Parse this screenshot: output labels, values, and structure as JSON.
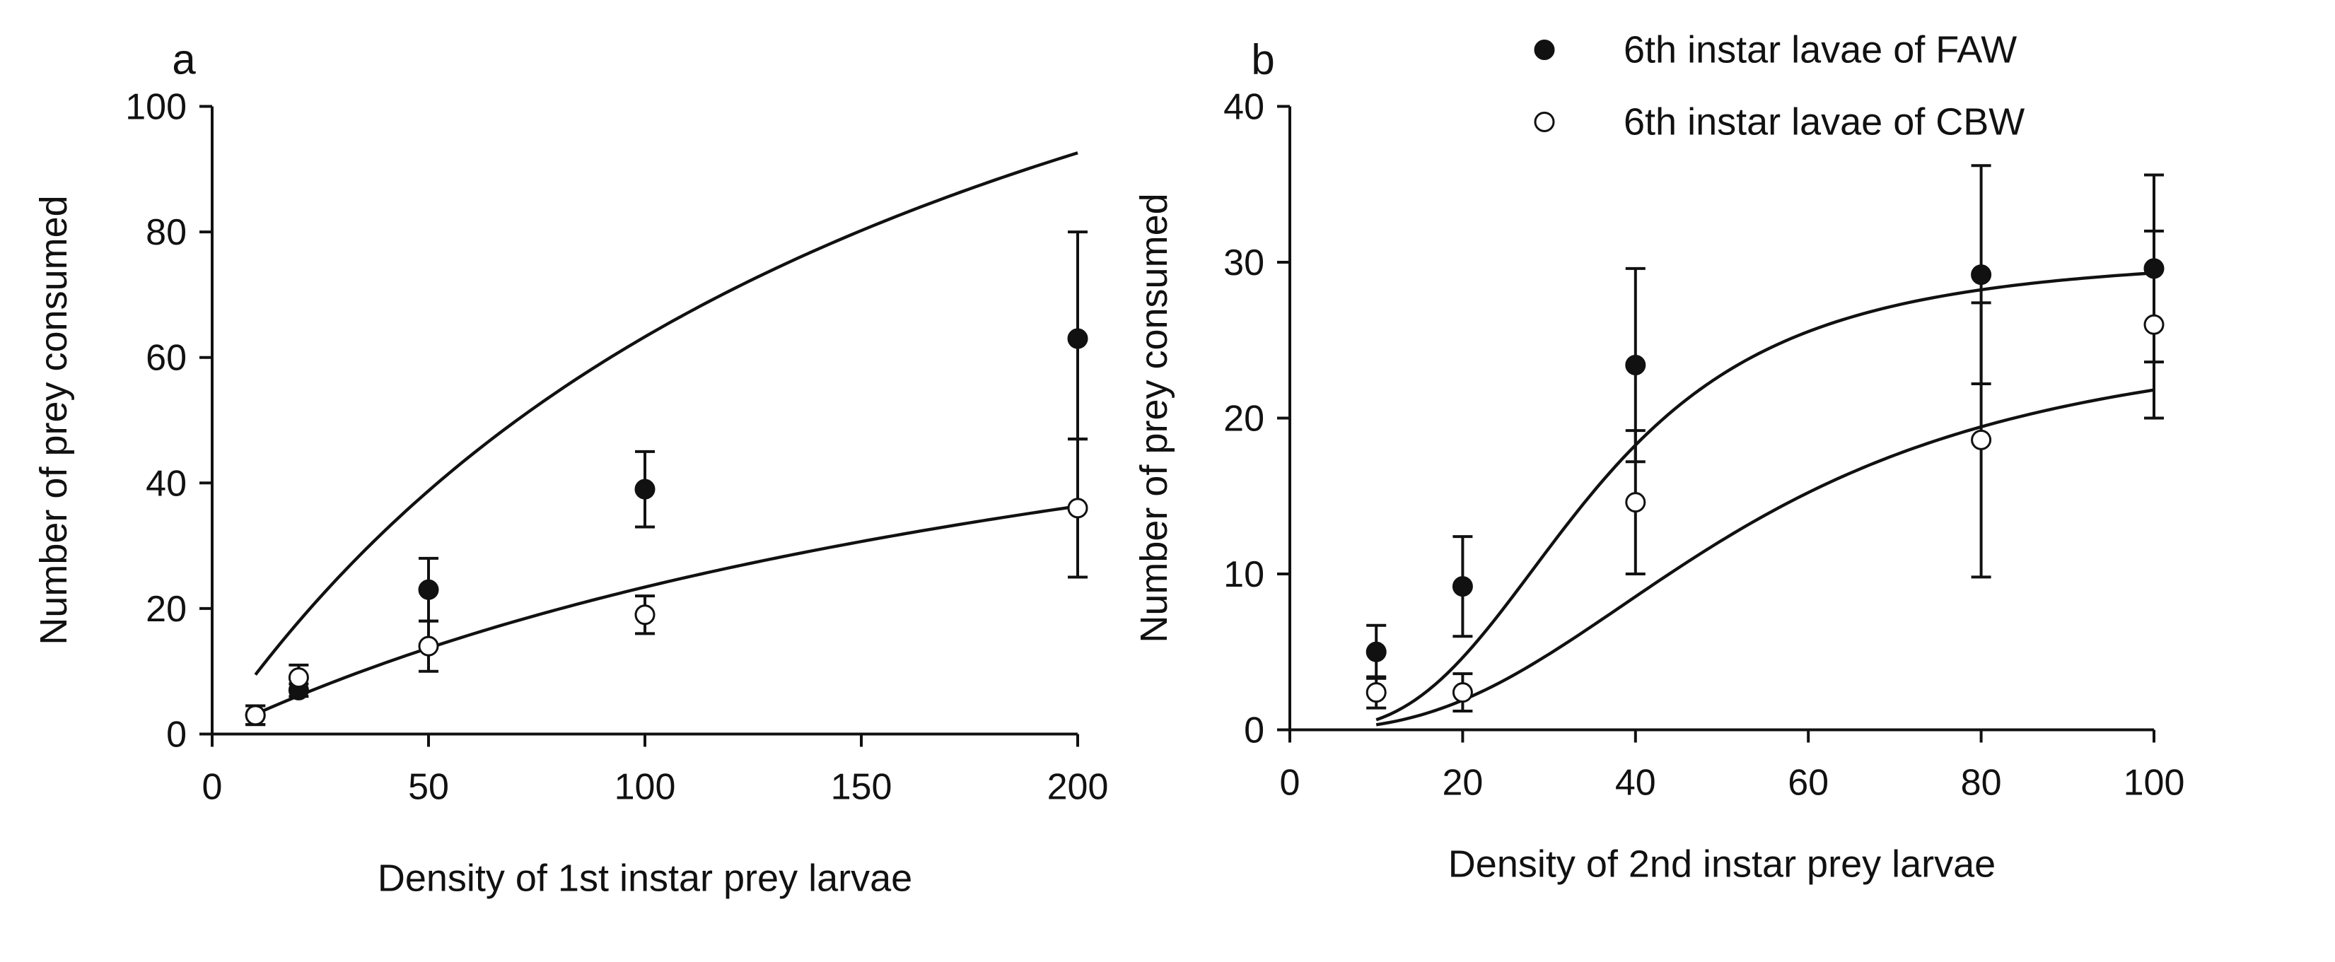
{
  "chart_data": [
    {
      "panel": "a",
      "type": "scatter",
      "title": "",
      "xlabel": "Density of 1st instar prey larvae",
      "ylabel": "Number of prey consumed",
      "xlim": [
        0,
        200
      ],
      "ylim": [
        0,
        100
      ],
      "xticks": [
        0,
        50,
        100,
        150,
        200
      ],
      "yticks": [
        0,
        20,
        40,
        60,
        80,
        100
      ],
      "series": [
        {
          "name": "6th instar lavae of FAW",
          "marker": "filled-circle",
          "x": [
            10,
            20,
            50,
            100,
            200
          ],
          "y": [
            3,
            7,
            23,
            39,
            63
          ],
          "err_low": [
            1.5,
            1,
            5,
            6,
            16
          ],
          "err_high": [
            1.5,
            1,
            5,
            6,
            17
          ],
          "fit": {
            "a": 1.0,
            "Th": 0.0058
          }
        },
        {
          "name": "6th instar lavae of CBW",
          "marker": "open-circle",
          "x": [
            10,
            20,
            50,
            100,
            200
          ],
          "y": [
            3,
            9,
            14,
            19,
            36
          ],
          "err_low": [
            1.5,
            2,
            4,
            3,
            11
          ],
          "err_high": [
            1.5,
            2,
            4,
            3,
            11
          ],
          "fit": {
            "a": 0.33,
            "Th": 0.0124
          }
        }
      ]
    },
    {
      "panel": "b",
      "type": "scatter",
      "title": "",
      "xlabel": "Density of 2nd instar prey larvae",
      "ylabel": "Number of prey consumed",
      "xlim": [
        0,
        100
      ],
      "ylim": [
        0,
        40
      ],
      "xticks": [
        0,
        20,
        40,
        60,
        80,
        100
      ],
      "yticks": [
        0,
        10,
        20,
        30,
        40
      ],
      "legend_position": "top-right",
      "series": [
        {
          "name": "6th instar lavae of FAW",
          "marker": "filled-circle",
          "x": [
            10,
            20,
            40,
            80,
            100
          ],
          "y": [
            5,
            9.2,
            23.4,
            29.2,
            29.6
          ],
          "err_low": [
            1.7,
            3.2,
            6.2,
            7,
            6
          ],
          "err_high": [
            1.7,
            3.2,
            6.2,
            7,
            6
          ],
          "fit": {
            "k": 30.5,
            "n": 3.06,
            "c": 0.0285
          }
        },
        {
          "name": "6th instar lavae of CBW",
          "marker": "open-circle",
          "x": [
            10,
            20,
            40,
            80,
            100
          ],
          "y": [
            2.4,
            2.4,
            14.6,
            18.6,
            26
          ],
          "err_low": [
            1,
            1.2,
            4.6,
            8.8,
            6
          ],
          "err_high": [
            1,
            1.2,
            4.6,
            8.8,
            6
          ],
          "fit": {
            "k": 25.7,
            "n": 2.64,
            "c": 0.0192
          }
        }
      ]
    }
  ],
  "panel_letters": [
    "a",
    "b"
  ],
  "legend": {
    "entries": [
      {
        "label": "6th instar lavae of FAW",
        "marker": "filled-circle"
      },
      {
        "label": "6th instar lavae of CBW",
        "marker": "open-circle"
      }
    ]
  }
}
